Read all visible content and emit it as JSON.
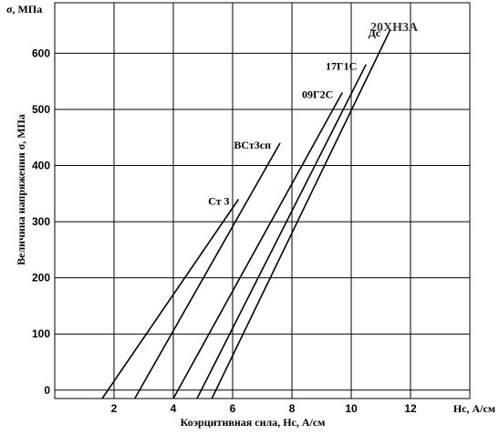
{
  "chart_data": {
    "type": "line",
    "title": "20ХН3А",
    "xlabel": "Коэрцитивная сила, Hc, А/см",
    "xlabel_right": "Hc, А/см",
    "ylabel": "Величина напряжения σ, МПа",
    "ylabel_top": "σ, МПа",
    "xlim": [
      0,
      14
    ],
    "ylim": [
      -15,
      690
    ],
    "x_ticks": [
      2,
      4,
      6,
      8,
      10,
      12
    ],
    "y_ticks": [
      0,
      100,
      200,
      300,
      400,
      500,
      600
    ],
    "grid": true,
    "series": [
      {
        "name": "Ст 3",
        "x": [
          1.6,
          6.2
        ],
        "y": [
          -15,
          340
        ]
      },
      {
        "name": "ВСт3сп",
        "x": [
          2.7,
          7.6
        ],
        "y": [
          -15,
          440
        ]
      },
      {
        "name": "09Г2С",
        "x": [
          4.0,
          9.7
        ],
        "y": [
          -15,
          530
        ]
      },
      {
        "name": "17Г1С",
        "x": [
          4.8,
          10.5
        ],
        "y": [
          -15,
          580
        ]
      },
      {
        "name": "Дс",
        "x": [
          5.3,
          11.3
        ],
        "y": [
          -15,
          640
        ]
      }
    ]
  }
}
